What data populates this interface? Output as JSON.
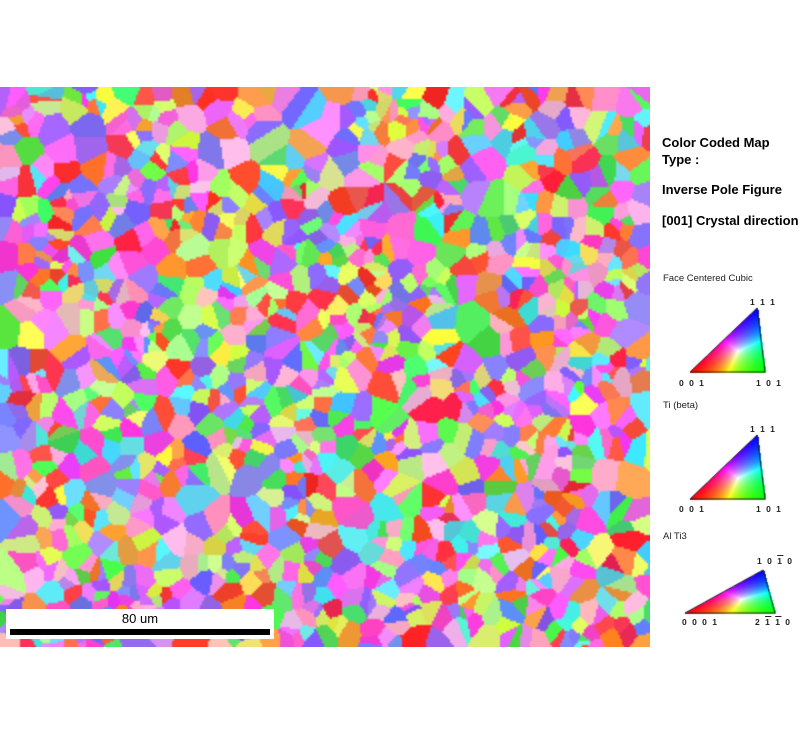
{
  "map": {
    "scale_bar_label": "80 um",
    "color_scheme": "IPF grain map"
  },
  "info": {
    "line1": "Color Coded Map",
    "line2": "Type :",
    "line3": "Inverse Pole Figure",
    "line4": "[001] Crystal direction"
  },
  "legends": [
    {
      "title": "Face Centered Cubic",
      "top": "1 1 1",
      "left": "0 0 1",
      "right": "1 0 1"
    },
    {
      "title": "Ti (beta)",
      "top": "1 1 1",
      "left": "0 0 1",
      "right": "1 0 1"
    },
    {
      "title": "Al Ti3",
      "top_a": "1 0 ",
      "top_b": "1",
      "top_c": " 0",
      "left": "0 0 0 1",
      "right_a": "2 ",
      "right_b": "1",
      "right_c": " ",
      "right_d": "1",
      "right_e": " 0"
    }
  ],
  "colors": {
    "corner_001": "#ff0000",
    "corner_101": "#00ff00",
    "corner_111": "#0000ff"
  }
}
